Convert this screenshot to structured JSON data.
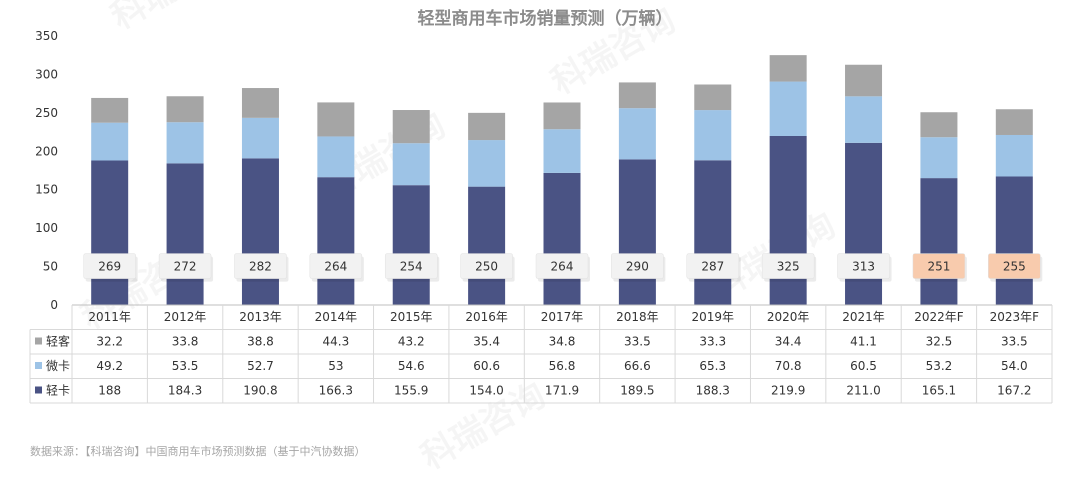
{
  "chart_data": {
    "type": "bar",
    "stacked": true,
    "title": "轻型商用车市场销量预测（万辆）",
    "categories": [
      "2011年",
      "2012年",
      "2013年",
      "2014年",
      "2015年",
      "2016年",
      "2017年",
      "2018年",
      "2019年",
      "2020年",
      "2021年",
      "2022年F",
      "2023年F"
    ],
    "series": [
      {
        "name": "轻卡",
        "color": "#4a5384",
        "values": [
          188,
          184.3,
          190.8,
          166.3,
          155.9,
          154.0,
          171.9,
          189.5,
          188.3,
          219.9,
          211.0,
          165.1,
          167.2
        ],
        "labels": [
          "188",
          "184.3",
          "190.8",
          "166.3",
          "155.9",
          "154.0",
          "171.9",
          "189.5",
          "188.3",
          "219.9",
          "211.0",
          "165.1",
          "167.2"
        ]
      },
      {
        "name": "微卡",
        "color": "#9dc3e6",
        "values": [
          49.2,
          53.5,
          52.7,
          53,
          54.6,
          60.6,
          56.8,
          66.6,
          65.3,
          70.8,
          60.5,
          53.2,
          54.0
        ],
        "labels": [
          "49.2",
          "53.5",
          "52.7",
          "53",
          "54.6",
          "60.6",
          "56.8",
          "66.6",
          "65.3",
          "70.8",
          "60.5",
          "53.2",
          "54.0"
        ]
      },
      {
        "name": "轻客",
        "color": "#a5a5a5",
        "values": [
          32.2,
          33.8,
          38.8,
          44.3,
          43.2,
          35.4,
          34.8,
          33.5,
          33.3,
          34.4,
          41.1,
          32.5,
          33.5
        ],
        "labels": [
          "32.2",
          "33.8",
          "38.8",
          "44.3",
          "43.2",
          "35.4",
          "34.8",
          "33.5",
          "33.3",
          "34.4",
          "41.1",
          "32.5",
          "33.5"
        ]
      }
    ],
    "totals": [
      "269",
      "272",
      "282",
      "264",
      "254",
      "250",
      "264",
      "290",
      "287",
      "325",
      "313",
      "251",
      "255"
    ],
    "forecast_highlight_color": "#f8cbad",
    "forecast_indices": [
      11,
      12
    ],
    "ylim": [
      0,
      350
    ],
    "yticks": [
      "0",
      "50",
      "100",
      "150",
      "200",
      "250",
      "300",
      "350"
    ],
    "table_row_order": [
      "轻客",
      "微卡",
      "轻卡"
    ]
  },
  "source_note": "数据来源：【科瑞咨询】中国商用车市场预测数据（基于中汽协数据）",
  "watermark_text": "科瑞咨询"
}
